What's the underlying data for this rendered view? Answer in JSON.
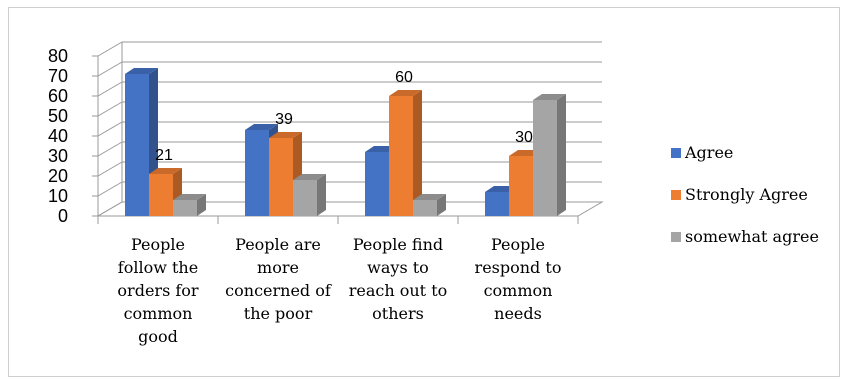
{
  "chart_data": {
    "type": "bar",
    "categories": [
      [
        "People",
        "follow the",
        "orders for",
        "common",
        "good"
      ],
      [
        "People are",
        "more",
        "concerned of",
        "the poor"
      ],
      [
        "People find",
        "ways to",
        "reach out to",
        "others"
      ],
      [
        "People",
        "respond to",
        "common",
        "needs"
      ]
    ],
    "series": [
      {
        "name": "Agree",
        "values": [
          71,
          43,
          32,
          12
        ],
        "color": "#4472C4"
      },
      {
        "name": "Strongly Agree",
        "values": [
          21,
          39,
          60,
          30
        ],
        "color": "#ED7D31"
      },
      {
        "name": "somewhat agree",
        "values": [
          8,
          18,
          8,
          58
        ],
        "color": "#A5A5A5"
      }
    ],
    "data_labels": [
      {
        "series": 1,
        "category": 0,
        "text": "21"
      },
      {
        "series": 1,
        "category": 1,
        "text": "39"
      },
      {
        "series": 1,
        "category": 2,
        "text": "60"
      },
      {
        "series": 1,
        "category": 3,
        "text": "30"
      }
    ],
    "yticks": [
      "0",
      "10",
      "20",
      "30",
      "40",
      "50",
      "60",
      "70",
      "80"
    ],
    "ylim": [
      0,
      80
    ],
    "grid": true,
    "legend_position": "right",
    "style": "3d-clustered-column"
  }
}
